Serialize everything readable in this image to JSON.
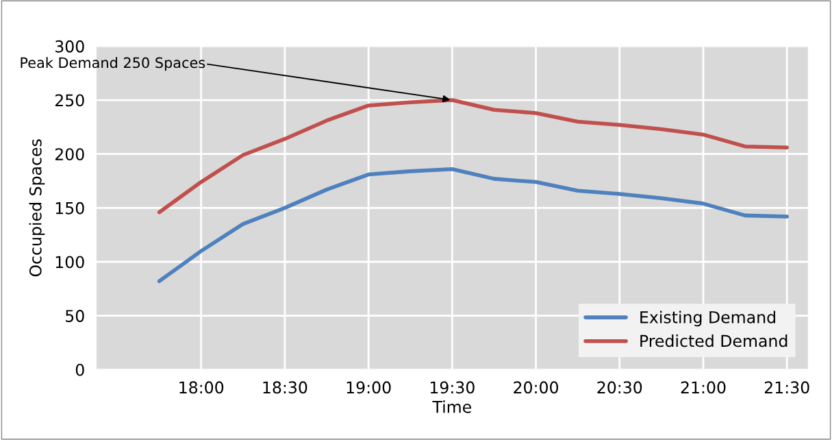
{
  "chart_data": {
    "type": "line",
    "xlabel": "Time",
    "ylabel": "Occupied Spaces",
    "x": [
      17.75,
      18.0,
      18.25,
      18.5,
      18.75,
      19.0,
      19.25,
      19.5,
      19.75,
      20.0,
      20.25,
      20.5,
      20.75,
      21.0,
      21.25,
      21.5
    ],
    "series": [
      {
        "name": "Existing Demand",
        "color": "#4f81bd",
        "values": [
          82,
          110,
          135,
          150,
          167,
          181,
          184,
          186,
          177,
          174,
          166,
          163,
          159,
          154,
          143,
          142
        ]
      },
      {
        "name": "Predicted Demand",
        "color": "#c0504d",
        "values": [
          146,
          174,
          199,
          214,
          231,
          245,
          248,
          250,
          241,
          238,
          230,
          227,
          223,
          218,
          207,
          206
        ]
      }
    ],
    "xlim": [
      17.375,
      21.625
    ],
    "xticks": [
      {
        "value": 18,
        "label": "18:00"
      },
      {
        "value": 18.5,
        "label": "18:30"
      },
      {
        "value": 19,
        "label": "19:00"
      },
      {
        "value": 19.5,
        "label": "19:30"
      },
      {
        "value": 20,
        "label": "20:00"
      },
      {
        "value": 20.5,
        "label": "20:30"
      },
      {
        "value": 21,
        "label": "21:00"
      },
      {
        "value": 21.5,
        "label": "21:30"
      }
    ],
    "ylim": [
      0,
      300
    ],
    "yticks": [
      0,
      50,
      100,
      150,
      200,
      250,
      300
    ],
    "annotations": [
      {
        "text": "Peak Demand 250 Spaces",
        "x": 19.5,
        "y": 250
      }
    ],
    "grid": true,
    "legend": "bottom right",
    "marker": "none",
    "line_style": "solid"
  }
}
